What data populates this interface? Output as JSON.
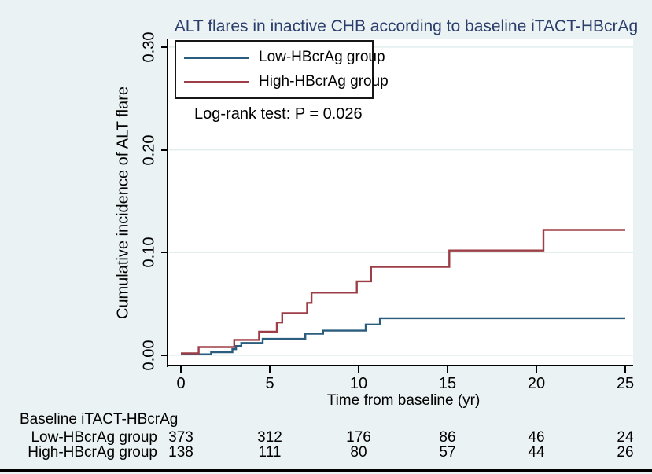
{
  "colors": {
    "background": "#eaf2f3",
    "plot_background": "#ffffff",
    "gridline": "#e2edee",
    "axis": "#000000",
    "title_text": "#2b3e6b",
    "low_group_line": "#2b5e7e",
    "high_group_line": "#9d3e46",
    "bottom_rule": "#000000"
  },
  "chart_data": {
    "type": "line",
    "subtype": "step-survival",
    "title": "ALT flares in inactive CHB according to baseline iTACT-HBcrAg",
    "xlabel": "Time from baseline (yr)",
    "ylabel": "Cumulative incidence of ALT flare",
    "annotation": "Log-rank test: P = 0.026",
    "xlim": [
      0,
      25
    ],
    "ylim": [
      0.0,
      0.3
    ],
    "grid": "horizontal",
    "legend_position": "top-left-inside",
    "xticks": [
      {
        "v": 0,
        "label": "0"
      },
      {
        "v": 5,
        "label": "5"
      },
      {
        "v": 10,
        "label": "10"
      },
      {
        "v": 15,
        "label": "15"
      },
      {
        "v": 20,
        "label": "20"
      },
      {
        "v": 25,
        "label": "25"
      }
    ],
    "yticks": [
      {
        "v": 0.0,
        "label": "0.00"
      },
      {
        "v": 0.1,
        "label": "0.10"
      },
      {
        "v": 0.2,
        "label": "0.20"
      },
      {
        "v": 0.3,
        "label": "0.30"
      }
    ],
    "series": [
      {
        "name": "Low-HBcrAg group",
        "color": "#2b5e7e",
        "points": [
          [
            0,
            0.001
          ],
          [
            1.7,
            0.003
          ],
          [
            2.9,
            0.006
          ],
          [
            3.1,
            0.009
          ],
          [
            3.4,
            0.012
          ],
          [
            4.6,
            0.016
          ],
          [
            7.0,
            0.021
          ],
          [
            8.0,
            0.024
          ],
          [
            10.4,
            0.03
          ],
          [
            11.2,
            0.036
          ],
          [
            25,
            0.036
          ]
        ]
      },
      {
        "name": "High-HBcrAg group",
        "color": "#9d3e46",
        "points": [
          [
            0,
            0.002
          ],
          [
            1.0,
            0.008
          ],
          [
            3.0,
            0.015
          ],
          [
            4.4,
            0.023
          ],
          [
            5.4,
            0.032
          ],
          [
            5.7,
            0.041
          ],
          [
            7.1,
            0.051
          ],
          [
            7.35,
            0.061
          ],
          [
            9.9,
            0.072
          ],
          [
            10.7,
            0.086
          ],
          [
            15.1,
            0.102
          ],
          [
            20.4,
            0.122
          ],
          [
            25,
            0.122
          ]
        ]
      }
    ]
  },
  "risk_table": {
    "title": "Baseline iTACT-HBcrAg",
    "times": [
      0,
      5,
      10,
      15,
      20,
      25
    ],
    "rows": [
      {
        "label": "Low-HBcrAg group",
        "counts": [
          "373",
          "312",
          "176",
          "86",
          "46",
          "24"
        ]
      },
      {
        "label": "High-HBcrAg group",
        "counts": [
          "138",
          "111",
          "80",
          "57",
          "44",
          "26"
        ]
      }
    ]
  }
}
